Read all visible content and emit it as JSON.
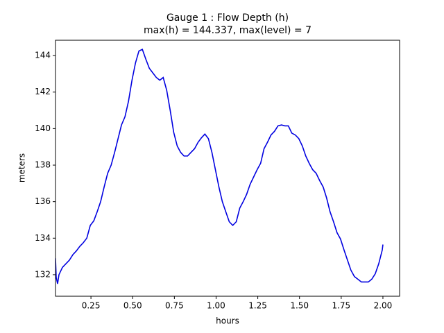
{
  "chart_data": {
    "type": "line",
    "title": "Gauge 1 : Flow Depth (h)",
    "subtitle": "max(h) = 144.337,    max(level) = 7",
    "x_label": "hours",
    "y_label": "meters",
    "xlim": [
      0.0375,
      2.1
    ],
    "ylim": [
      130.82,
      144.84
    ],
    "xticks": [
      0.25,
      {
        "value": 0.5,
        "label": "0.50"
      },
      0.75,
      {
        "value": 1.0,
        "label": "1.00"
      },
      1.25,
      {
        "value": 1.5,
        "label": "1.50"
      },
      1.75,
      {
        "value": 2.0,
        "label": "2.00"
      }
    ],
    "yticks": [
      132,
      134,
      136,
      138,
      140,
      142,
      144
    ],
    "grid": false,
    "series": [
      {
        "color": "#0000e0",
        "x": [
          0.0375,
          0.0417,
          0.05,
          0.0583,
          0.079,
          0.1,
          0.121,
          0.142,
          0.1625,
          0.183,
          0.204,
          0.225,
          0.246,
          0.267,
          0.2875,
          0.308,
          0.329,
          0.35,
          0.371,
          0.392,
          0.4125,
          0.433,
          0.454,
          0.475,
          0.496,
          0.517,
          0.5375,
          0.558,
          0.579,
          0.6,
          0.621,
          0.642,
          0.6625,
          0.683,
          0.704,
          0.725,
          0.746,
          0.767,
          0.7875,
          0.808,
          0.829,
          0.85,
          0.871,
          0.892,
          0.9125,
          0.933,
          0.954,
          0.975,
          0.996,
          1.017,
          1.0375,
          1.058,
          1.079,
          1.1,
          1.121,
          1.142,
          1.1625,
          1.183,
          1.204,
          1.225,
          1.246,
          1.267,
          1.2875,
          1.308,
          1.329,
          1.35,
          1.371,
          1.392,
          1.4125,
          1.433,
          1.454,
          1.475,
          1.496,
          1.517,
          1.5375,
          1.558,
          1.579,
          1.6,
          1.621,
          1.642,
          1.6625,
          1.683,
          1.704,
          1.725,
          1.746,
          1.767,
          1.7875,
          1.808,
          1.829,
          1.85,
          1.871,
          1.892,
          1.9125,
          1.933,
          1.954,
          1.975,
          1.996,
          2.0
        ],
        "values": [
          132.9,
          131.85,
          131.5,
          132.0,
          132.4,
          132.6,
          132.8,
          133.1,
          133.3,
          133.55,
          133.75,
          134.0,
          134.7,
          134.95,
          135.45,
          136.0,
          136.8,
          137.55,
          138.0,
          138.7,
          139.45,
          140.2,
          140.65,
          141.5,
          142.65,
          143.6,
          144.25,
          144.34,
          143.8,
          143.3,
          143.05,
          142.8,
          142.65,
          142.8,
          142.1,
          141.0,
          139.8,
          139.05,
          138.7,
          138.5,
          138.5,
          138.7,
          138.9,
          139.25,
          139.5,
          139.7,
          139.45,
          138.7,
          137.75,
          136.8,
          136.0,
          135.45,
          134.9,
          134.7,
          134.9,
          135.65,
          136.0,
          136.4,
          136.95,
          137.35,
          137.75,
          138.1,
          138.9,
          139.25,
          139.65,
          139.85,
          140.15,
          140.2,
          140.15,
          140.15,
          139.75,
          139.65,
          139.45,
          139.05,
          138.5,
          138.1,
          137.75,
          137.55,
          137.15,
          136.8,
          136.2,
          135.45,
          134.9,
          134.3,
          133.95,
          133.35,
          132.8,
          132.25,
          131.9,
          131.75,
          131.6,
          131.6,
          131.6,
          131.75,
          132.05,
          132.6,
          133.35,
          133.65
        ]
      }
    ]
  }
}
